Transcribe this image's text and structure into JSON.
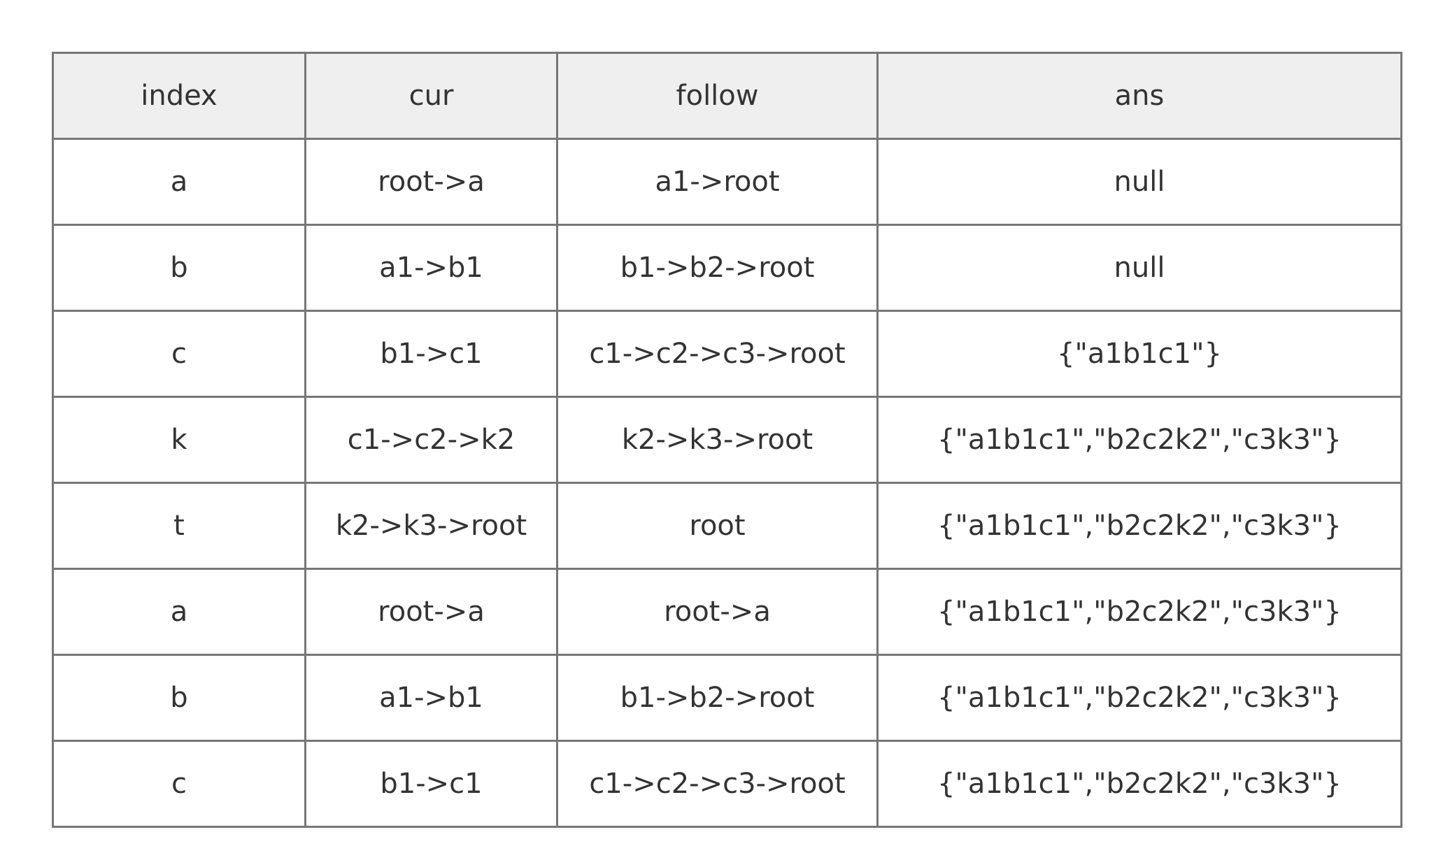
{
  "table": {
    "headers": [
      "index",
      "cur",
      "follow",
      "ans"
    ],
    "rows": [
      [
        "a",
        "root->a",
        "a1->root",
        "null"
      ],
      [
        "b",
        "a1->b1",
        "b1->b2->root",
        "null"
      ],
      [
        "c",
        "b1->c1",
        "c1->c2->c3->root",
        "{\"a1b1c1\"}"
      ],
      [
        "k",
        "c1->c2->k2",
        "k2->k3->root",
        "{\"a1b1c1\",\"b2c2k2\",\"c3k3\"}"
      ],
      [
        "t",
        "k2->k3->root",
        "root",
        "{\"a1b1c1\",\"b2c2k2\",\"c3k3\"}"
      ],
      [
        "a",
        "root->a",
        "root->a",
        "{\"a1b1c1\",\"b2c2k2\",\"c3k3\"}"
      ],
      [
        "b",
        "a1->b1",
        "b1->b2->root",
        "{\"a1b1c1\",\"b2c2k2\",\"c3k3\"}"
      ],
      [
        "c",
        "b1->c1",
        "c1->c2->c3->root",
        "{\"a1b1c1\",\"b2c2k2\",\"c3k3\"}"
      ]
    ]
  }
}
